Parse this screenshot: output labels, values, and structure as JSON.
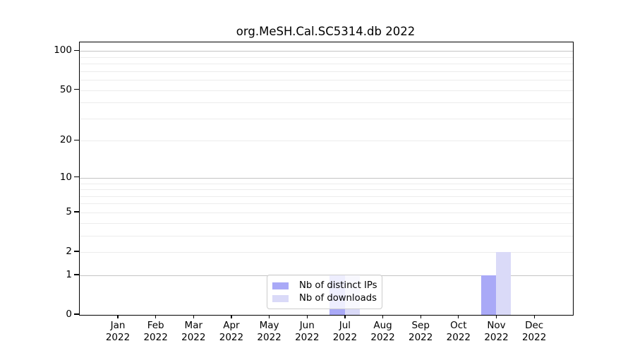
{
  "title": "org.MeSH.Cal.SC5314.db 2022",
  "chart_data": {
    "type": "bar",
    "title": "org.MeSH.Cal.SC5314.db 2022",
    "categories": [
      "Jan",
      "Feb",
      "Mar",
      "Apr",
      "May",
      "Jun",
      "Jul",
      "Aug",
      "Sep",
      "Oct",
      "Nov",
      "Dec"
    ],
    "category_year": "2022",
    "series": [
      {
        "name": "Nb of distinct IPs",
        "color": "#a9a9f7",
        "values": [
          0,
          0,
          0,
          0,
          0,
          0,
          1,
          0,
          0,
          0,
          1,
          0
        ]
      },
      {
        "name": "Nb of downloads",
        "color": "#dadaf8",
        "values": [
          0,
          0,
          0,
          0,
          0,
          0,
          1,
          0,
          0,
          0,
          2,
          0
        ]
      }
    ],
    "y_scale": "log1p",
    "y_ticks": [
      0,
      1,
      2,
      5,
      10,
      20,
      50,
      100
    ],
    "y_major_gridlines": [
      1,
      10,
      100
    ],
    "y_minor_gridlines": [
      2,
      3,
      4,
      5,
      6,
      7,
      8,
      9,
      20,
      30,
      40,
      50,
      60,
      70,
      80,
      90
    ],
    "ylim": [
      0,
      113
    ],
    "grid": true,
    "legend_position": "lower-center-inside"
  },
  "colors": {
    "bar_ips": "#a9a9f7",
    "bar_downloads": "#dadaf8",
    "major_grid": "#c4c4c4",
    "minor_grid": "#ececec",
    "axis": "#000000",
    "legend_border": "#cccccc"
  }
}
